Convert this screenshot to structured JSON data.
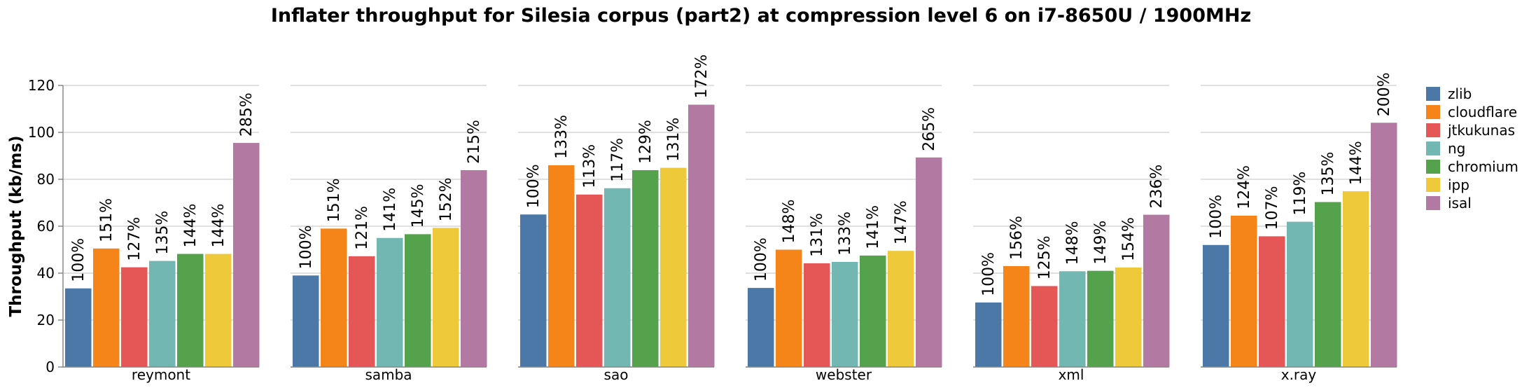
{
  "chart_data": {
    "type": "bar",
    "title": "Inflater throughput for Silesia corpus (part2) at compression level 6 on i7-8650U / 1900MHz",
    "ylabel": "Throughput (kb/ms)",
    "xlabel": "",
    "ylim": [
      0,
      120
    ],
    "yticks": [
      "0",
      "20",
      "40",
      "60",
      "80",
      "100",
      "120"
    ],
    "grid": true,
    "legend_position": "right",
    "categories": [
      "reymont",
      "samba",
      "sao",
      "webster",
      "xml",
      "x.ray"
    ],
    "series": [
      {
        "name": "zlib",
        "color": "#4c78a8",
        "values": [
          33.5,
          39,
          65,
          33.7,
          27.5,
          52
        ],
        "labels": [
          "100%",
          "100%",
          "100%",
          "100%",
          "100%",
          "100%"
        ]
      },
      {
        "name": "cloudflare",
        "color": "#f58518",
        "values": [
          50.5,
          59,
          86,
          50,
          43,
          64.5
        ],
        "labels": [
          "151%",
          "151%",
          "133%",
          "148%",
          "156%",
          "124%"
        ]
      },
      {
        "name": "jtkukunas",
        "color": "#e45756",
        "values": [
          42.5,
          47.2,
          73.5,
          44.2,
          34.5,
          55.7
        ],
        "labels": [
          "127%",
          "121%",
          "113%",
          "131%",
          "125%",
          "107%"
        ]
      },
      {
        "name": "ng",
        "color": "#72b7b2",
        "values": [
          45.2,
          55,
          76.2,
          44.8,
          40.8,
          61.9
        ],
        "labels": [
          "135%",
          "141%",
          "117%",
          "133%",
          "148%",
          "119%"
        ]
      },
      {
        "name": "chromium",
        "color": "#54a24b",
        "values": [
          48.2,
          56.6,
          83.9,
          47.5,
          41,
          70.3
        ],
        "labels": [
          "144%",
          "145%",
          "129%",
          "141%",
          "149%",
          "135%"
        ]
      },
      {
        "name": "ipp",
        "color": "#eeca3b",
        "values": [
          48.2,
          59.3,
          84.9,
          49.5,
          42.4,
          74.9
        ],
        "labels": [
          "144%",
          "152%",
          "131%",
          "147%",
          "154%",
          "144%"
        ]
      },
      {
        "name": "isal",
        "color": "#b279a2",
        "values": [
          95.5,
          83.9,
          111.8,
          89.3,
          64.9,
          104.1
        ],
        "labels": [
          "285%",
          "215%",
          "172%",
          "265%",
          "236%",
          "200%"
        ]
      }
    ]
  }
}
